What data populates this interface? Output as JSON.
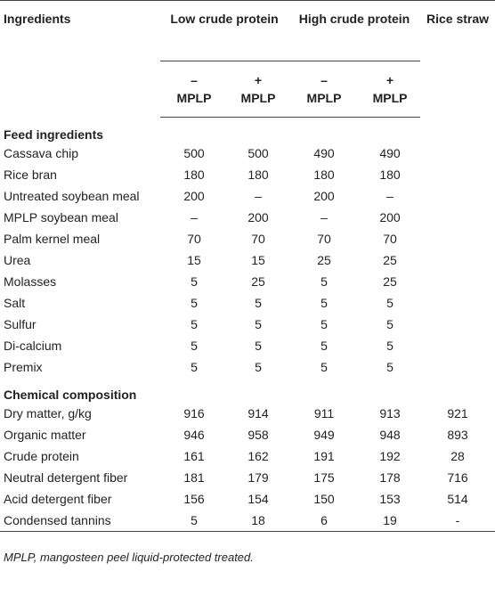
{
  "table": {
    "header": {
      "ingredients": "Ingredients",
      "groups": [
        "Low crude protein",
        "High crude protein"
      ],
      "rice_straw": "Rice straw",
      "treatments": [
        {
          "sign": "–",
          "label": "MPLP"
        },
        {
          "sign": "+",
          "label": "MPLP"
        },
        {
          "sign": "–",
          "label": "MPLP"
        },
        {
          "sign": "+",
          "label": "MPLP"
        }
      ]
    },
    "sections": [
      {
        "title": "Feed ingredients",
        "rows": [
          {
            "label": "Cassava chip",
            "values": [
              "500",
              "500",
              "490",
              "490"
            ]
          },
          {
            "label": "Rice bran",
            "values": [
              "180",
              "180",
              "180",
              "180"
            ]
          },
          {
            "label": "Untreated soybean meal",
            "values": [
              "200",
              "–",
              "200",
              "–"
            ]
          },
          {
            "label": "MPLP soybean meal",
            "values": [
              "–",
              "200",
              "–",
              "200"
            ]
          },
          {
            "label": "Palm kernel meal",
            "values": [
              "70",
              "70",
              "70",
              "70"
            ]
          },
          {
            "label": "Urea",
            "values": [
              "15",
              "15",
              "25",
              "25"
            ]
          },
          {
            "label": "Molasses",
            "values": [
              "5",
              "25",
              "5",
              "25"
            ]
          },
          {
            "label": "Salt",
            "values": [
              "5",
              "5",
              "5",
              "5"
            ]
          },
          {
            "label": "Sulfur",
            "values": [
              "5",
              "5",
              "5",
              "5"
            ]
          },
          {
            "label": "Di-calcium",
            "values": [
              "5",
              "5",
              "5",
              "5"
            ]
          },
          {
            "label": "Premix",
            "values": [
              "5",
              "5",
              "5",
              "5"
            ]
          }
        ]
      },
      {
        "title": "Chemical composition",
        "rows": [
          {
            "label": "Dry matter, g/kg",
            "values": [
              "916",
              "914",
              "911",
              "913",
              "921"
            ]
          },
          {
            "label": "Organic matter",
            "values": [
              "946",
              "958",
              "949",
              "948",
              "893"
            ]
          },
          {
            "label": "Crude protein",
            "values": [
              "161",
              "162",
              "191",
              "192",
              "28"
            ]
          },
          {
            "label": "Neutral detergent fiber",
            "values": [
              "181",
              "179",
              "175",
              "178",
              "716"
            ]
          },
          {
            "label": "Acid detergent fiber",
            "values": [
              "156",
              "154",
              "150",
              "153",
              "514"
            ]
          },
          {
            "label": "Condensed tannins",
            "values": [
              "5",
              "18",
              "6",
              "19",
              "-"
            ]
          }
        ]
      }
    ],
    "footnote": "MPLP, mangosteen peel liquid-protected treated."
  }
}
